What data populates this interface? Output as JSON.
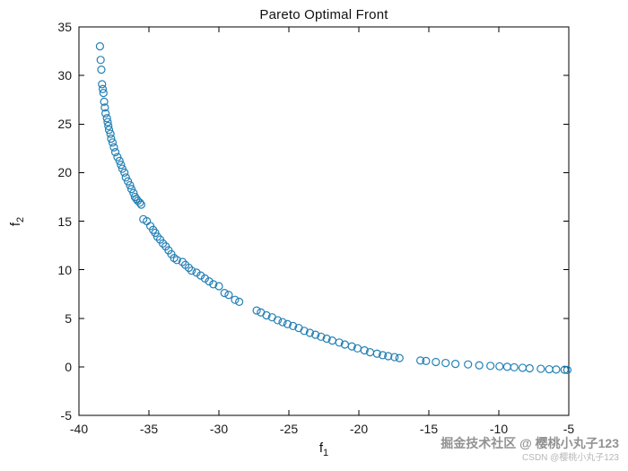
{
  "chart_data": {
    "type": "scatter",
    "title": "Pareto Optimal Front",
    "xlabel_base": "f",
    "xlabel_sub": "1",
    "ylabel_base": "f",
    "ylabel_sub": "2",
    "xlim": [
      -40,
      -5
    ],
    "ylim": [
      -5,
      35
    ],
    "xticks": [
      -40,
      -35,
      -30,
      -25,
      -20,
      -15,
      -10,
      -5
    ],
    "yticks": [
      -5,
      0,
      5,
      10,
      15,
      20,
      25,
      30,
      35
    ],
    "grid": false,
    "legend_visible": false,
    "marker": {
      "shape": "circle-open",
      "color": "#2380b5",
      "radius": 4,
      "stroke_width": 1.2
    },
    "axis_color": "#000000",
    "points": [
      [
        -38.5,
        33.0
      ],
      [
        -38.45,
        31.6
      ],
      [
        -38.4,
        30.6
      ],
      [
        -38.35,
        29.1
      ],
      [
        -38.3,
        28.6
      ],
      [
        -38.25,
        28.2
      ],
      [
        -38.2,
        27.3
      ],
      [
        -38.15,
        26.7
      ],
      [
        -38.1,
        26.1
      ],
      [
        -38.0,
        25.6
      ],
      [
        -37.95,
        25.2
      ],
      [
        -37.9,
        24.8
      ],
      [
        -37.85,
        24.4
      ],
      [
        -37.75,
        24.0
      ],
      [
        -37.7,
        23.5
      ],
      [
        -37.6,
        23.1
      ],
      [
        -37.5,
        22.6
      ],
      [
        -37.4,
        22.1
      ],
      [
        -37.25,
        21.6
      ],
      [
        -37.1,
        21.2
      ],
      [
        -37.0,
        20.8
      ],
      [
        -36.9,
        20.4
      ],
      [
        -36.75,
        20.0
      ],
      [
        -36.65,
        19.5
      ],
      [
        -36.5,
        19.1
      ],
      [
        -36.35,
        18.7
      ],
      [
        -36.25,
        18.3
      ],
      [
        -36.1,
        17.9
      ],
      [
        -36.0,
        17.5
      ],
      [
        -35.9,
        17.3
      ],
      [
        -35.8,
        17.1
      ],
      [
        -35.65,
        16.9
      ],
      [
        -35.55,
        16.7
      ],
      [
        -35.4,
        15.2
      ],
      [
        -35.15,
        15.0
      ],
      [
        -34.9,
        14.5
      ],
      [
        -34.7,
        14.1
      ],
      [
        -34.55,
        13.8
      ],
      [
        -34.4,
        13.4
      ],
      [
        -34.2,
        13.1
      ],
      [
        -34.0,
        12.7
      ],
      [
        -33.8,
        12.4
      ],
      [
        -33.6,
        12.0
      ],
      [
        -33.4,
        11.6
      ],
      [
        -33.2,
        11.2
      ],
      [
        -33.0,
        11.0
      ],
      [
        -32.6,
        10.8
      ],
      [
        -32.4,
        10.5
      ],
      [
        -32.15,
        10.2
      ],
      [
        -31.95,
        9.9
      ],
      [
        -31.6,
        9.7
      ],
      [
        -31.3,
        9.4
      ],
      [
        -31.0,
        9.1
      ],
      [
        -30.7,
        8.8
      ],
      [
        -30.4,
        8.5
      ],
      [
        -30.0,
        8.3
      ],
      [
        -29.6,
        7.6
      ],
      [
        -29.3,
        7.4
      ],
      [
        -28.85,
        6.9
      ],
      [
        -28.55,
        6.7
      ],
      [
        -27.3,
        5.8
      ],
      [
        -27.0,
        5.6
      ],
      [
        -26.6,
        5.3
      ],
      [
        -26.2,
        5.1
      ],
      [
        -25.8,
        4.8
      ],
      [
        -25.45,
        4.6
      ],
      [
        -25.1,
        4.4
      ],
      [
        -24.7,
        4.2
      ],
      [
        -24.3,
        4.0
      ],
      [
        -23.9,
        3.7
      ],
      [
        -23.5,
        3.5
      ],
      [
        -23.1,
        3.3
      ],
      [
        -22.7,
        3.1
      ],
      [
        -22.3,
        2.9
      ],
      [
        -21.9,
        2.7
      ],
      [
        -21.4,
        2.5
      ],
      [
        -21.0,
        2.3
      ],
      [
        -20.5,
        2.1
      ],
      [
        -20.1,
        1.9
      ],
      [
        -19.6,
        1.7
      ],
      [
        -19.2,
        1.5
      ],
      [
        -18.7,
        1.35
      ],
      [
        -18.3,
        1.2
      ],
      [
        -17.9,
        1.1
      ],
      [
        -17.45,
        1.0
      ],
      [
        -17.1,
        0.9
      ],
      [
        -15.6,
        0.65
      ],
      [
        -15.2,
        0.6
      ],
      [
        -14.5,
        0.5
      ],
      [
        -13.8,
        0.4
      ],
      [
        -13.1,
        0.3
      ],
      [
        -12.2,
        0.25
      ],
      [
        -11.4,
        0.15
      ],
      [
        -10.6,
        0.1
      ],
      [
        -9.95,
        0.05
      ],
      [
        -9.4,
        0.0
      ],
      [
        -8.9,
        -0.05
      ],
      [
        -8.3,
        -0.1
      ],
      [
        -7.8,
        -0.15
      ],
      [
        -7.0,
        -0.2
      ],
      [
        -6.4,
        -0.25
      ],
      [
        -5.9,
        -0.28
      ],
      [
        -5.3,
        -0.3
      ],
      [
        -5.1,
        -0.32
      ]
    ]
  },
  "watermark": {
    "line1": "掘金技术社区 @ 樱桃小丸子123",
    "line2": "CSDN @樱桃小丸子123"
  }
}
